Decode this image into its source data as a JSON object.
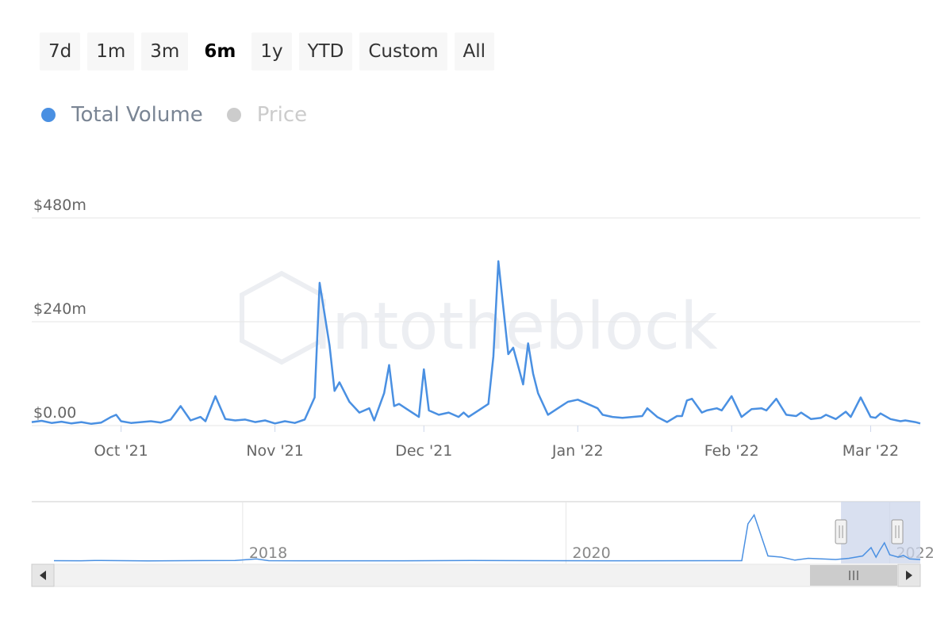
{
  "range_buttons": [
    {
      "label": "7d",
      "active": false
    },
    {
      "label": "1m",
      "active": false
    },
    {
      "label": "3m",
      "active": false
    },
    {
      "label": "6m",
      "active": true
    },
    {
      "label": "1y",
      "active": false
    },
    {
      "label": "YTD",
      "active": false
    },
    {
      "label": "Custom",
      "active": false
    },
    {
      "label": "All",
      "active": false
    }
  ],
  "legend": [
    {
      "label": "Total Volume",
      "color": "#4a90e2",
      "text_color": "#7a8594",
      "enabled": true
    },
    {
      "label": "Price",
      "color": "#cccccc",
      "text_color": "#cccccc",
      "enabled": false
    }
  ],
  "watermark": "intotheblock",
  "colors": {
    "line": "#4a90e2",
    "grid": "#e6e6e6",
    "nav_mask": "#ccd6eb"
  },
  "chart_data": {
    "type": "line",
    "title": "",
    "xlabel": "",
    "ylabel": "",
    "series": [
      {
        "name": "Total Volume"
      }
    ],
    "y_ticks": [
      {
        "value": 0,
        "label": "$0.00"
      },
      {
        "value": 240,
        "label": "$240m"
      },
      {
        "value": 480,
        "label": "$480m"
      }
    ],
    "ylim": [
      0,
      480
    ],
    "y_unit": "millions USD",
    "x_ticks": [
      {
        "date": "2021-10-01",
        "label": "Oct '21"
      },
      {
        "date": "2021-11-01",
        "label": "Nov '21"
      },
      {
        "date": "2021-12-01",
        "label": "Dec '21"
      },
      {
        "date": "2022-01-01",
        "label": "Jan '22"
      },
      {
        "date": "2022-02-01",
        "label": "Feb '22"
      },
      {
        "date": "2022-03-01",
        "label": "Mar '22"
      }
    ],
    "xlim": [
      "2021-09-13",
      "2022-03-11"
    ],
    "points": [
      [
        "2021-09-13",
        8
      ],
      [
        "2021-09-15",
        11
      ],
      [
        "2021-09-17",
        6
      ],
      [
        "2021-09-19",
        9
      ],
      [
        "2021-09-21",
        5
      ],
      [
        "2021-09-23",
        8
      ],
      [
        "2021-09-25",
        4
      ],
      [
        "2021-09-27",
        7
      ],
      [
        "2021-09-29",
        20
      ],
      [
        "2021-09-30",
        25
      ],
      [
        "2021-10-01",
        10
      ],
      [
        "2021-10-03",
        6
      ],
      [
        "2021-10-05",
        8
      ],
      [
        "2021-10-07",
        10
      ],
      [
        "2021-10-09",
        7
      ],
      [
        "2021-10-11",
        14
      ],
      [
        "2021-10-13",
        45
      ],
      [
        "2021-10-15",
        12
      ],
      [
        "2021-10-17",
        20
      ],
      [
        "2021-10-18",
        10
      ],
      [
        "2021-10-20",
        68
      ],
      [
        "2021-10-22",
        15
      ],
      [
        "2021-10-24",
        12
      ],
      [
        "2021-10-26",
        14
      ],
      [
        "2021-10-28",
        8
      ],
      [
        "2021-10-30",
        12
      ],
      [
        "2021-11-01",
        5
      ],
      [
        "2021-11-03",
        10
      ],
      [
        "2021-11-05",
        6
      ],
      [
        "2021-11-07",
        14
      ],
      [
        "2021-11-09",
        65
      ],
      [
        "2021-11-10",
        330
      ],
      [
        "2021-11-12",
        185
      ],
      [
        "2021-11-13",
        80
      ],
      [
        "2021-11-14",
        100
      ],
      [
        "2021-11-16",
        55
      ],
      [
        "2021-11-18",
        30
      ],
      [
        "2021-11-20",
        40
      ],
      [
        "2021-11-21",
        12
      ],
      [
        "2021-11-23",
        75
      ],
      [
        "2021-11-24",
        140
      ],
      [
        "2021-11-25",
        45
      ],
      [
        "2021-11-26",
        50
      ],
      [
        "2021-11-28",
        35
      ],
      [
        "2021-11-30",
        20
      ],
      [
        "2021-12-01",
        130
      ],
      [
        "2021-12-02",
        35
      ],
      [
        "2021-12-04",
        25
      ],
      [
        "2021-12-06",
        30
      ],
      [
        "2021-12-08",
        20
      ],
      [
        "2021-12-09",
        30
      ],
      [
        "2021-12-10",
        20
      ],
      [
        "2021-12-12",
        35
      ],
      [
        "2021-12-14",
        50
      ],
      [
        "2021-12-15",
        160
      ],
      [
        "2021-12-16",
        380
      ],
      [
        "2021-12-18",
        165
      ],
      [
        "2021-12-19",
        180
      ],
      [
        "2021-12-21",
        95
      ],
      [
        "2021-12-22",
        190
      ],
      [
        "2021-12-23",
        120
      ],
      [
        "2021-12-24",
        75
      ],
      [
        "2021-12-26",
        25
      ],
      [
        "2021-12-28",
        40
      ],
      [
        "2021-12-30",
        55
      ],
      [
        "2022-01-01",
        60
      ],
      [
        "2022-01-03",
        50
      ],
      [
        "2022-01-05",
        40
      ],
      [
        "2022-01-06",
        25
      ],
      [
        "2022-01-08",
        20
      ],
      [
        "2022-01-10",
        18
      ],
      [
        "2022-01-12",
        20
      ],
      [
        "2022-01-14",
        22
      ],
      [
        "2022-01-15",
        40
      ],
      [
        "2022-01-17",
        20
      ],
      [
        "2022-01-19",
        8
      ],
      [
        "2022-01-21",
        22
      ],
      [
        "2022-01-22",
        22
      ],
      [
        "2022-01-23",
        58
      ],
      [
        "2022-01-24",
        62
      ],
      [
        "2022-01-26",
        30
      ],
      [
        "2022-01-27",
        35
      ],
      [
        "2022-01-29",
        40
      ],
      [
        "2022-01-30",
        35
      ],
      [
        "2022-02-01",
        68
      ],
      [
        "2022-02-03",
        20
      ],
      [
        "2022-02-05",
        38
      ],
      [
        "2022-02-07",
        40
      ],
      [
        "2022-02-08",
        35
      ],
      [
        "2022-02-10",
        62
      ],
      [
        "2022-02-12",
        25
      ],
      [
        "2022-02-14",
        22
      ],
      [
        "2022-02-15",
        30
      ],
      [
        "2022-02-17",
        15
      ],
      [
        "2022-02-19",
        18
      ],
      [
        "2022-02-20",
        25
      ],
      [
        "2022-02-22",
        15
      ],
      [
        "2022-02-24",
        32
      ],
      [
        "2022-02-25",
        20
      ],
      [
        "2022-02-27",
        65
      ],
      [
        "2022-03-01",
        20
      ],
      [
        "2022-03-02",
        18
      ],
      [
        "2022-03-03",
        28
      ],
      [
        "2022-03-05",
        15
      ],
      [
        "2022-03-07",
        10
      ],
      [
        "2022-03-08",
        12
      ],
      [
        "2022-03-10",
        8
      ],
      [
        "2022-03-11",
        5
      ]
    ],
    "navigator": {
      "x_labels": [
        {
          "date": "2018-01-01",
          "label": "2018"
        },
        {
          "date": "2020-01-01",
          "label": "2020"
        },
        {
          "date": "2022-01-01",
          "label": "2022"
        }
      ],
      "xlim": [
        "2016-11-01",
        "2022-03-11"
      ],
      "ymax": 480,
      "points": [
        [
          "2016-11-01",
          10
        ],
        [
          "2017-01-01",
          9
        ],
        [
          "2017-02-01",
          12
        ],
        [
          "2017-06-01",
          8
        ],
        [
          "2017-12-15",
          12
        ],
        [
          "2018-02-01",
          25
        ],
        [
          "2018-03-01",
          10
        ],
        [
          "2018-06-01",
          9
        ],
        [
          "2019-01-01",
          9
        ],
        [
          "2019-06-01",
          12
        ],
        [
          "2019-12-01",
          10
        ],
        [
          "2020-06-01",
          9
        ],
        [
          "2021-01-01",
          10
        ],
        [
          "2021-02-01",
          10
        ],
        [
          "2021-02-15",
          320
        ],
        [
          "2021-03-01",
          395
        ],
        [
          "2021-04-01",
          50
        ],
        [
          "2021-05-01",
          40
        ],
        [
          "2021-06-01",
          15
        ],
        [
          "2021-07-01",
          30
        ],
        [
          "2021-08-01",
          25
        ],
        [
          "2021-09-01",
          20
        ],
        [
          "2021-10-01",
          30
        ],
        [
          "2021-11-01",
          50
        ],
        [
          "2021-11-20",
          120
        ],
        [
          "2021-12-01",
          40
        ],
        [
          "2021-12-10",
          100
        ],
        [
          "2021-12-20",
          160
        ],
        [
          "2022-01-01",
          60
        ],
        [
          "2022-01-20",
          40
        ],
        [
          "2022-02-01",
          55
        ],
        [
          "2022-02-15",
          25
        ],
        [
          "2022-03-11",
          20
        ]
      ],
      "selected_range": [
        "2021-09-13",
        "2022-03-11"
      ]
    }
  }
}
